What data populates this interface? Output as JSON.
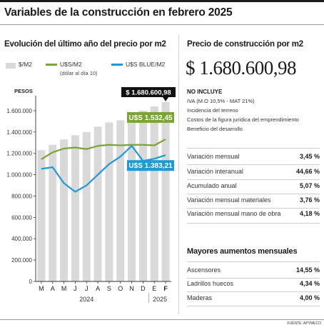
{
  "header": {
    "title": "Variables de la construcción en febrero 2025"
  },
  "left_panel": {
    "title": "Evolución del último año del precio por m2",
    "legend": [
      {
        "label": "$/M2",
        "color": "#d9d9d9"
      },
      {
        "label": "U$S/M2",
        "sublabel": "(dólar al día 10)",
        "color": "#7aa534"
      },
      {
        "label": "U$S BLUE/M2",
        "color": "#1e9ad6"
      }
    ]
  },
  "chart_data": {
    "type": "bar",
    "ylabel": "PESOS",
    "ylim": [
      0,
      1700000
    ],
    "yticks": [
      0,
      200000,
      400000,
      600000,
      800000,
      1000000,
      1200000,
      1400000,
      1600000
    ],
    "ytick_labels": [
      "0",
      "200.000",
      "400.000",
      "600.000",
      "800.000",
      "1.000.000",
      "1.200.000",
      "1.400.000",
      "1.600.000"
    ],
    "categories": [
      "M",
      "A",
      "M",
      "J",
      "J",
      "A",
      "S",
      "O",
      "N",
      "D",
      "E",
      "F"
    ],
    "year_labels": [
      {
        "label": "2024",
        "category_index": 4
      },
      {
        "label": "2025",
        "category_index": 10.5
      }
    ],
    "series": [
      {
        "name": "$/M2",
        "type": "bar",
        "color": "#d9d9d9",
        "values": [
          1230000,
          1280000,
          1330000,
          1370000,
          1400000,
          1450000,
          1490000,
          1510000,
          1560000,
          1600000,
          1640000,
          1680600.98
        ]
      },
      {
        "name": "U$S/M2",
        "type": "line",
        "color": "#7aa534",
        "values": [
          1145000,
          1210000,
          1245000,
          1255000,
          1240000,
          1270000,
          1280000,
          1275000,
          1280000,
          1280000,
          1275000,
          1332450
        ]
      },
      {
        "name": "U$S BLUE/M2",
        "type": "line",
        "color": "#1e9ad6",
        "values": [
          1055000,
          1070000,
          920000,
          840000,
          900000,
          1000000,
          1100000,
          1170000,
          1270000,
          1130000,
          1150000,
          1183210
        ]
      }
    ],
    "annotations": [
      {
        "text": "$ 1.680.600,98",
        "series": "$/M2",
        "bg": "#111111",
        "color": "#ffffff"
      },
      {
        "text": "U$S 1.532,45",
        "series": "U$S/M2",
        "bg": "#7aa534",
        "color": "#ffffff"
      },
      {
        "text": "U$S 1.383,21",
        "series": "U$S BLUE/M2",
        "bg": "#1e9ad6",
        "color": "#ffffff"
      }
    ]
  },
  "right_panel": {
    "title": "Precio de construcción por m2",
    "price": "$ 1.680.600,98",
    "no_incluye": {
      "heading": "NO INCLUYE",
      "items": [
        "IVA (M.O 10,5% - MAT 21%)",
        "Incidencia del terreno",
        "Costos de la figura jurídica del emprendimiento",
        "Beneficio del desarrollo"
      ]
    },
    "variations": [
      {
        "label": "Variación mensual",
        "value": "3,45 %"
      },
      {
        "label": "Variación interanual",
        "value": "44,66 %"
      },
      {
        "label": "Acumulado anual",
        "value": "5,07 %"
      },
      {
        "label": "Variación mensual materiales",
        "value": "3,76 %"
      },
      {
        "label": "Variación mensual mano de obra",
        "value": "4,18 %"
      }
    ],
    "aumentos_title": "Mayores aumentos mensuales",
    "aumentos": [
      {
        "label": "Ascensores",
        "value": "14,55 %"
      },
      {
        "label": "Ladrillos huecos",
        "value": "4,34 %"
      },
      {
        "label": "Maderas",
        "value": "4,00 %"
      }
    ]
  },
  "footer": {
    "source": "FUENTE: APYMECO"
  }
}
